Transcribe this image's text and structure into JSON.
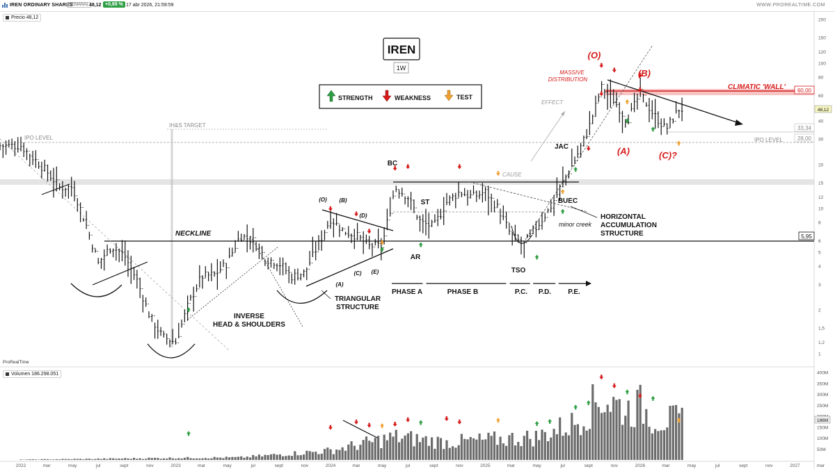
{
  "header": {
    "instrument": "IREN ORDINARY SHARES",
    "period_badge": "SEMANAL",
    "last_price": "48,12",
    "change": "+0,88 %",
    "datetime": "17 abr 2026, 21:59:59",
    "brand": "WWW.PROREALTIME.COM"
  },
  "price_panel": {
    "legend": "Precio 48,12",
    "watermark": "ProRealTime",
    "ticker_title": "IREN",
    "timeframe": "1W",
    "scale": "log",
    "y_ticks": [
      "200",
      "150",
      "120",
      "100",
      "80",
      "60",
      "50",
      "40",
      "30",
      "20",
      "15",
      "12",
      "10",
      "8",
      "6",
      "5",
      "4",
      "3",
      "2",
      "1,5",
      "1,2",
      "1"
    ],
    "price_tags": [
      "60,00",
      "48,12",
      "33,34",
      "28,00",
      "5,95"
    ],
    "key": {
      "strength": "STRENGTH",
      "weakness": "WEAKNESS",
      "test": "TEST"
    }
  },
  "annotations": {
    "ipo_level": "IPO LEVEL",
    "hs_target": "IH&S TARGET",
    "neckline": "NECKLINE",
    "inverse_hs": [
      "INVERSE",
      "HEAD & SHOULDERS"
    ],
    "triangular": [
      "TRIANGULAR",
      "STRUCTURE"
    ],
    "tri_labels": [
      "(O)",
      "(B)",
      "(D)",
      "(A)",
      "(C)",
      "(E)"
    ],
    "wyckoff": {
      "bc": "BC",
      "st": "ST",
      "ar": "AR",
      "tso": "TSO",
      "jac": "JAC",
      "buec": "BUEC",
      "cause": "CAUSE",
      "effect": "EFFECT",
      "minor_creek": "minor creek",
      "horizontal": [
        "HORIZONTAL",
        "ACCUMULATION",
        "STRUCTURE"
      ]
    },
    "phases": [
      "PHASE A",
      "PHASE B",
      "P.C.",
      "P.D.",
      "P.E."
    ],
    "massive": [
      "MASSIVE",
      "DISTRIBUTION"
    ],
    "wave_o": "(O)",
    "wave_a": "(A)",
    "wave_b": "(B)",
    "wave_c": "(C)?",
    "climatic_wall": "CLIMATIC 'WALL'"
  },
  "volume_panel": {
    "legend": "Volumen 186.298.051",
    "y_ticks": [
      "400M",
      "350M",
      "300M",
      "250M",
      "200M",
      "150M",
      "100M",
      "50M"
    ],
    "last_tag": "186M"
  },
  "x_axis": {
    "ticks": [
      "2022",
      "mar",
      "may",
      "jul",
      "sept",
      "nov",
      "2023",
      "mar",
      "may",
      "jul",
      "sept",
      "nov",
      "2024",
      "mar",
      "may",
      "jul",
      "sept",
      "nov",
      "2025",
      "mar",
      "may",
      "jul",
      "sept",
      "nov",
      "2026",
      "mar",
      "may",
      "jul",
      "sept",
      "nov",
      "2027",
      "mar"
    ]
  },
  "colors": {
    "green": "#2e9e44",
    "red": "#d61a1a",
    "orange": "#f0a030",
    "wall": "#f5b5b5",
    "band": "#d8d8d8"
  },
  "chart_data": {
    "type": "bar",
    "title": "IREN",
    "timeframe": "1W",
    "scale": "log",
    "ylim": [
      1,
      200
    ],
    "x_range": [
      "2022-01",
      "2027-03"
    ],
    "close_path": [
      [
        "2022-01",
        27
      ],
      [
        "2022-03",
        18
      ],
      [
        "2022-04",
        14
      ],
      [
        "2022-05",
        14
      ],
      [
        "2022-06",
        8
      ],
      [
        "2022-07",
        4.2
      ],
      [
        "2022-08",
        5.5
      ],
      [
        "2022-09",
        4.8
      ],
      [
        "2022-10",
        3.2
      ],
      [
        "2022-11",
        1.8
      ],
      [
        "2022-12",
        1.3
      ],
      [
        "2023-01",
        1.2
      ],
      [
        "2023-02",
        2.2
      ],
      [
        "2023-03",
        3.4
      ],
      [
        "2023-04",
        3.5
      ],
      [
        "2023-05",
        4.2
      ],
      [
        "2023-06",
        6.5
      ],
      [
        "2023-07",
        6
      ],
      [
        "2023-08",
        4.5
      ],
      [
        "2023-09",
        4.2
      ],
      [
        "2023-10",
        3.4
      ],
      [
        "2023-11",
        3.6
      ],
      [
        "2023-12",
        5.5
      ],
      [
        "2024-01",
        8.5
      ],
      [
        "2024-02",
        7
      ],
      [
        "2024-03",
        6.5
      ],
      [
        "2024-04",
        5.5
      ],
      [
        "2024-05",
        5.5
      ],
      [
        "2024-06",
        14
      ],
      [
        "2024-07",
        12
      ],
      [
        "2024-08",
        8
      ],
      [
        "2024-09",
        7.5
      ],
      [
        "2024-10",
        11
      ],
      [
        "2024-11",
        13
      ],
      [
        "2024-12",
        12
      ],
      [
        "2025-01",
        13
      ],
      [
        "2025-02",
        10
      ],
      [
        "2025-03",
        6.5
      ],
      [
        "2025-04",
        5.6
      ],
      [
        "2025-05",
        7.5
      ],
      [
        "2025-06",
        10
      ],
      [
        "2025-07",
        15
      ],
      [
        "2025-08",
        22
      ],
      [
        "2025-09",
        35
      ],
      [
        "2025-10",
        68
      ],
      [
        "2025-11",
        55
      ],
      [
        "2025-12",
        40
      ],
      [
        "2026-01",
        62
      ],
      [
        "2026-02",
        45
      ],
      [
        "2026-03",
        35
      ],
      [
        "2026-04",
        48.12
      ]
    ],
    "levels": [
      {
        "label": "CLIMATIC 'WALL'",
        "value": 60
      },
      {
        "label": "IPO LEVEL",
        "value": 28
      },
      {
        "label": "NECKLINE",
        "value": 5.95
      },
      {
        "label": "",
        "value": 33.34
      }
    ],
    "volume_M": [
      [
        "2022-01",
        2
      ],
      [
        "2022-06",
        5
      ],
      [
        "2023-01",
        10
      ],
      [
        "2023-06",
        12
      ],
      [
        "2024-01",
        45
      ],
      [
        "2024-06",
        110
      ],
      [
        "2024-10",
        85
      ],
      [
        "2025-01",
        95
      ],
      [
        "2025-05",
        110
      ],
      [
        "2025-08",
        180
      ],
      [
        "2025-10",
        300
      ],
      [
        "2025-12",
        240
      ],
      [
        "2026-01",
        260
      ],
      [
        "2026-02",
        200
      ],
      [
        "2026-04",
        186
      ]
    ]
  }
}
